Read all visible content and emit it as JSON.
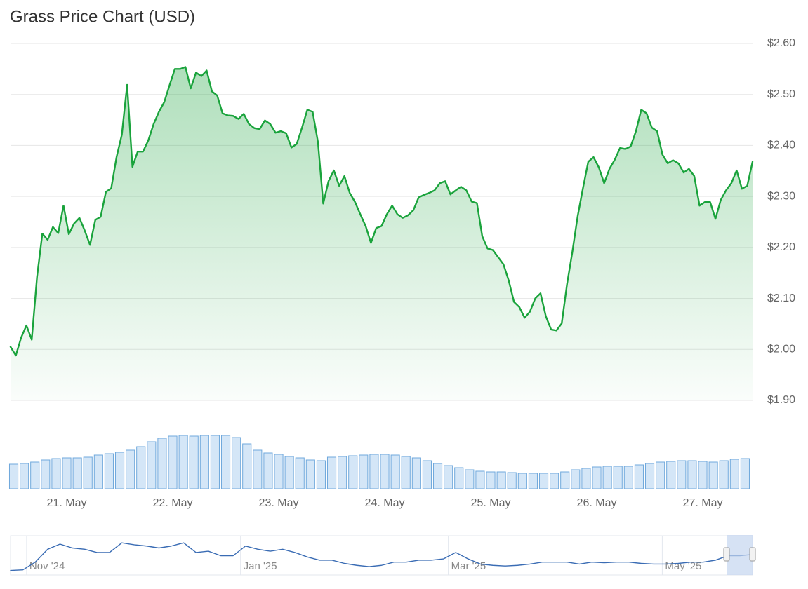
{
  "chart_data": [
    {
      "type": "line",
      "title": "Grass Price Chart (USD)",
      "color": "#1aa33c",
      "grid": true,
      "xlim": [
        20.47,
        27.47
      ],
      "ylim": [
        1.9,
        2.6
      ],
      "yticks": [
        {
          "value": 2.6,
          "label": "$2.60"
        },
        {
          "value": 2.5,
          "label": "$2.50"
        },
        {
          "value": 2.4,
          "label": "$2.40"
        },
        {
          "value": 2.3,
          "label": "$2.30"
        },
        {
          "value": 2.2,
          "label": "$2.20"
        },
        {
          "value": 2.1,
          "label": "$2.10"
        },
        {
          "value": 2.0,
          "label": "$2.00"
        },
        {
          "value": 1.9,
          "label": "$1.90"
        }
      ],
      "xticks": [
        {
          "value": 21,
          "label": "21. May"
        },
        {
          "value": 22,
          "label": "22. May"
        },
        {
          "value": 23,
          "label": "23. May"
        },
        {
          "value": 24,
          "label": "24. May"
        },
        {
          "value": 25,
          "label": "25. May"
        },
        {
          "value": 26,
          "label": "26. May"
        },
        {
          "value": 27,
          "label": "27. May"
        }
      ],
      "x": [
        20.47,
        20.52,
        20.57,
        20.62,
        20.67,
        20.72,
        20.77,
        20.82,
        20.87,
        20.92,
        20.97,
        21.02,
        21.07,
        21.12,
        21.17,
        21.22,
        21.27,
        21.32,
        21.37,
        21.42,
        21.47,
        21.52,
        21.57,
        21.62,
        21.67,
        21.72,
        21.77,
        21.82,
        21.87,
        21.92,
        21.97,
        22.02,
        22.07,
        22.12,
        22.17,
        22.22,
        22.27,
        22.32,
        22.37,
        22.42,
        22.47,
        22.52,
        22.57,
        22.62,
        22.67,
        22.72,
        22.77,
        22.82,
        22.87,
        22.92,
        22.97,
        23.02,
        23.07,
        23.12,
        23.17,
        23.22,
        23.27,
        23.32,
        23.37,
        23.42,
        23.47,
        23.52,
        23.57,
        23.62,
        23.67,
        23.72,
        23.77,
        23.82,
        23.87,
        23.92,
        23.97,
        24.02,
        24.07,
        24.12,
        24.17,
        24.22,
        24.27,
        24.32,
        24.37,
        24.42,
        24.47,
        24.52,
        24.57,
        24.62,
        24.67,
        24.72,
        24.77,
        24.82,
        24.87,
        24.92,
        24.97,
        25.02,
        25.07,
        25.12,
        25.17,
        25.22,
        25.27,
        25.32,
        25.37,
        25.42,
        25.47,
        25.52,
        25.57,
        25.62,
        25.67,
        25.72,
        25.77,
        25.82,
        25.87,
        25.92,
        25.97,
        26.02,
        26.07,
        26.12,
        26.17,
        26.22,
        26.27,
        26.32,
        26.37,
        26.42,
        26.47,
        26.52,
        26.57,
        26.62,
        26.67,
        26.72,
        26.77,
        26.82,
        26.87,
        26.92,
        26.97,
        27.02,
        27.07,
        27.12,
        27.17,
        27.22,
        27.27,
        27.32,
        27.37,
        27.42,
        27.47
      ],
      "values": [
        2.005,
        1.988,
        2.023,
        2.047,
        2.019,
        2.142,
        2.227,
        2.215,
        2.24,
        2.228,
        2.282,
        2.226,
        2.247,
        2.258,
        2.233,
        2.205,
        2.254,
        2.26,
        2.309,
        2.316,
        2.377,
        2.421,
        2.519,
        2.358,
        2.388,
        2.388,
        2.41,
        2.442,
        2.466,
        2.485,
        2.518,
        2.55,
        2.55,
        2.554,
        2.512,
        2.543,
        2.536,
        2.547,
        2.506,
        2.498,
        2.463,
        2.459,
        2.458,
        2.452,
        2.462,
        2.442,
        2.434,
        2.432,
        2.449,
        2.442,
        2.425,
        2.428,
        2.424,
        2.396,
        2.403,
        2.435,
        2.47,
        2.466,
        2.407,
        2.286,
        2.33,
        2.351,
        2.321,
        2.34,
        2.307,
        2.289,
        2.265,
        2.242,
        2.209,
        2.238,
        2.242,
        2.265,
        2.282,
        2.265,
        2.258,
        2.263,
        2.273,
        2.298,
        2.303,
        2.307,
        2.312,
        2.326,
        2.33,
        2.304,
        2.312,
        2.319,
        2.312,
        2.29,
        2.287,
        2.222,
        2.198,
        2.195,
        2.181,
        2.167,
        2.135,
        2.093,
        2.083,
        2.062,
        2.074,
        2.1,
        2.11,
        2.065,
        2.039,
        2.037,
        2.051,
        2.128,
        2.191,
        2.261,
        2.316,
        2.368,
        2.377,
        2.357,
        2.326,
        2.354,
        2.372,
        2.395,
        2.393,
        2.398,
        2.428,
        2.47,
        2.463,
        2.435,
        2.428,
        2.382,
        2.365,
        2.371,
        2.365,
        2.347,
        2.354,
        2.34,
        2.282,
        2.289,
        2.289,
        2.256,
        2.293,
        2.312,
        2.326,
        2.351,
        2.315,
        2.321,
        2.368
      ]
    },
    {
      "type": "bar",
      "color": "#d4e6f7",
      "xlim": [
        20.47,
        27.47
      ],
      "ylim": [
        0,
        100
      ],
      "x": [
        20.5,
        20.6,
        20.7,
        20.8,
        20.9,
        21.0,
        21.1,
        21.2,
        21.3,
        21.4,
        21.5,
        21.6,
        21.7,
        21.8,
        21.9,
        22.0,
        22.1,
        22.2,
        22.3,
        22.4,
        22.5,
        22.6,
        22.7,
        22.8,
        22.9,
        23.0,
        23.1,
        23.2,
        23.3,
        23.4,
        23.5,
        23.6,
        23.7,
        23.8,
        23.9,
        24.0,
        24.1,
        24.2,
        24.3,
        24.4,
        24.5,
        24.6,
        24.7,
        24.8,
        24.9,
        25.0,
        25.1,
        25.2,
        25.3,
        25.4,
        25.5,
        25.6,
        25.7,
        25.8,
        25.9,
        26.0,
        26.1,
        26.2,
        26.3,
        26.4,
        26.5,
        26.6,
        26.7,
        26.8,
        26.9,
        27.0,
        27.1,
        27.2,
        27.3,
        27.4
      ],
      "values": [
        35,
        36,
        38,
        41,
        43,
        44,
        44,
        45,
        48,
        50,
        52,
        55,
        60,
        67,
        72,
        75,
        76,
        75,
        76,
        76,
        76,
        73,
        64,
        55,
        51,
        49,
        46,
        44,
        41,
        40,
        45,
        46,
        47,
        48,
        49,
        49,
        48,
        46,
        44,
        40,
        36,
        33,
        30,
        27,
        25,
        24,
        24,
        23,
        22,
        22,
        22,
        22,
        24,
        27,
        29,
        31,
        32,
        32,
        32,
        34,
        36,
        38,
        39,
        40,
        40,
        39,
        38,
        40,
        42,
        43
      ]
    },
    {
      "type": "line",
      "color": "#3a6cb4",
      "xlim": [
        0,
        60
      ],
      "ylim": [
        0,
        60
      ],
      "xticks": [
        {
          "value": 1.3,
          "label": "Nov '24"
        },
        {
          "value": 18.6,
          "label": "Jan '25"
        },
        {
          "value": 35.4,
          "label": "Mar '25"
        },
        {
          "value": 52.7,
          "label": "May '25"
        }
      ],
      "values": [
        7,
        8,
        20,
        40,
        48,
        42,
        40,
        35,
        35,
        50,
        47,
        45,
        42,
        45,
        50,
        35,
        37,
        30,
        30,
        45,
        40,
        37,
        40,
        35,
        28,
        23,
        23,
        18,
        15,
        13,
        15,
        20,
        20,
        23,
        23,
        25,
        35,
        25,
        17,
        15,
        14,
        15,
        17,
        20,
        20,
        20,
        17,
        20,
        19,
        20,
        20,
        18,
        17,
        17,
        18,
        20,
        20,
        23,
        30,
        30,
        32
      ]
    }
  ]
}
